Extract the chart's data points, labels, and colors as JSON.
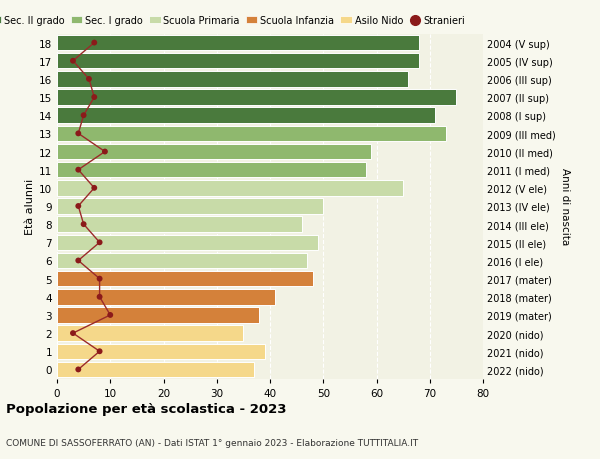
{
  "ages": [
    0,
    1,
    2,
    3,
    4,
    5,
    6,
    7,
    8,
    9,
    10,
    11,
    12,
    13,
    14,
    15,
    16,
    17,
    18
  ],
  "right_labels": [
    "2022 (nido)",
    "2021 (nido)",
    "2020 (nido)",
    "2019 (mater)",
    "2018 (mater)",
    "2017 (mater)",
    "2016 (I ele)",
    "2015 (II ele)",
    "2014 (III ele)",
    "2013 (IV ele)",
    "2012 (V ele)",
    "2011 (I med)",
    "2010 (II med)",
    "2009 (III med)",
    "2008 (I sup)",
    "2007 (II sup)",
    "2006 (III sup)",
    "2005 (IV sup)",
    "2004 (V sup)"
  ],
  "bar_values": [
    37,
    39,
    35,
    38,
    41,
    48,
    47,
    49,
    46,
    50,
    65,
    58,
    59,
    73,
    71,
    75,
    66,
    68,
    68
  ],
  "stranieri": [
    4,
    8,
    3,
    10,
    8,
    8,
    4,
    8,
    5,
    4,
    7,
    4,
    9,
    4,
    5,
    7,
    6,
    3,
    7
  ],
  "bar_colors": [
    "#f5d88a",
    "#f5d88a",
    "#f5d88a",
    "#d4813a",
    "#d4813a",
    "#d4813a",
    "#c8dba8",
    "#c8dba8",
    "#c8dba8",
    "#c8dba8",
    "#c8dba8",
    "#8fb86e",
    "#8fb86e",
    "#8fb86e",
    "#4a7a3d",
    "#4a7a3d",
    "#4a7a3d",
    "#4a7a3d",
    "#4a7a3d"
  ],
  "legend_labels": [
    "Sec. II grado",
    "Sec. I grado",
    "Scuola Primaria",
    "Scuola Infanzia",
    "Asilo Nido",
    "Stranieri"
  ],
  "legend_colors": [
    "#4a7a3d",
    "#8fb86e",
    "#c8dba8",
    "#d4813a",
    "#f5d88a",
    "#8b1a1a"
  ],
  "title_bold": "Popolazione per età scolastica - 2023",
  "subtitle": "COMUNE DI SASSOFERRATO (AN) - Dati ISTAT 1° gennaio 2023 - Elaborazione TUTTITALIA.IT",
  "ylabel_left": "Età alunni",
  "ylabel_right": "Anni di nascita",
  "xlim": [
    0,
    80
  ],
  "xticks": [
    0,
    10,
    20,
    30,
    40,
    50,
    60,
    70,
    80
  ],
  "bg_color": "#f8f8ee",
  "plot_bg_color": "#f2f2e4",
  "stranieri_color": "#8b1a1a",
  "stranieri_line_color": "#9b2a2a"
}
